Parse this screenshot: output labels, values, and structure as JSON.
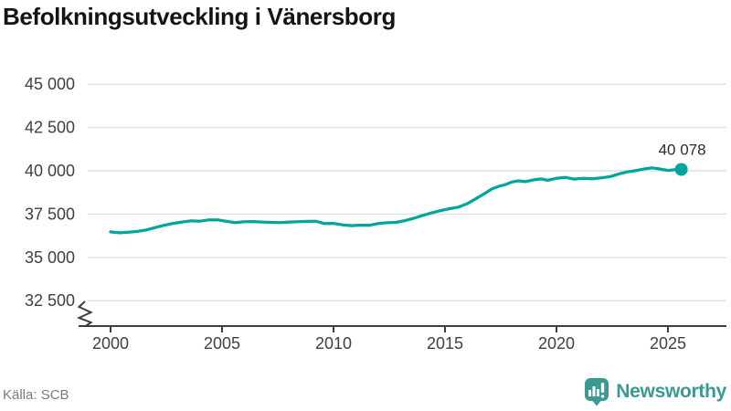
{
  "header": {
    "title": "Befolkningsutveckling i Vänersborg"
  },
  "footer": {
    "source": "Källa: SCB",
    "brand_name": "Newsworthy",
    "brand_icon": "newsworthy-speech-bubble-bar-chart-icon"
  },
  "colors": {
    "line": "#00A69B",
    "brand": "#3A9A93",
    "axis": "#3C3C3C",
    "grid": "#E0E0E0",
    "tick_text": "#404040"
  },
  "chart_data": {
    "type": "line",
    "title": "Befolkningsutveckling i Vänersborg",
    "xlabel": "",
    "ylabel": "",
    "legend": "none",
    "grid": "horizontal",
    "y_axis_break": true,
    "xlim": [
      1998.6,
      2027
    ],
    "ylim": [
      32500,
      45000
    ],
    "xticks": [
      2000,
      2005,
      2010,
      2015,
      2020,
      2025
    ],
    "xtick_labels": [
      "2000",
      "2005",
      "2010",
      "2015",
      "2020",
      "2025"
    ],
    "yticks": [
      45000,
      42500,
      40000,
      37500,
      35000,
      32500
    ],
    "ytick_labels": [
      "45 000",
      "42 500",
      "40 000",
      "37 500",
      "35 000",
      "32 500"
    ],
    "end_label": "40 078",
    "end_value": 40078,
    "x": [
      2000.0,
      2000.4,
      2000.8,
      2001.2,
      2001.6,
      2002.0,
      2002.4,
      2002.8,
      2003.2,
      2003.6,
      2004.0,
      2004.4,
      2004.8,
      2005.2,
      2005.6,
      2006.0,
      2006.4,
      2006.8,
      2007.2,
      2007.6,
      2008.0,
      2008.4,
      2008.8,
      2009.2,
      2009.6,
      2010.0,
      2010.4,
      2010.8,
      2011.2,
      2011.6,
      2012.0,
      2012.4,
      2012.8,
      2013.2,
      2013.6,
      2014.0,
      2014.4,
      2014.8,
      2015.2,
      2015.6,
      2016.0,
      2016.4,
      2016.8,
      2017.1,
      2017.4,
      2017.7,
      2018.0,
      2018.3,
      2018.6,
      2019.0,
      2019.3,
      2019.6,
      2020.0,
      2020.4,
      2020.8,
      2021.2,
      2021.6,
      2022.0,
      2022.4,
      2022.8,
      2023.2,
      2023.6,
      2024.0,
      2024.3,
      2024.6,
      2025.0,
      2025.3,
      2025.6
    ],
    "values": [
      36470,
      36420,
      36450,
      36500,
      36580,
      36720,
      36850,
      36960,
      37040,
      37110,
      37090,
      37160,
      37170,
      37080,
      37010,
      37060,
      37070,
      37040,
      37020,
      37010,
      37040,
      37060,
      37080,
      37090,
      36950,
      36960,
      36880,
      36830,
      36860,
      36850,
      36950,
      37000,
      37020,
      37120,
      37260,
      37420,
      37570,
      37700,
      37810,
      37900,
      38100,
      38400,
      38700,
      38950,
      39100,
      39200,
      39350,
      39420,
      39370,
      39480,
      39530,
      39450,
      39560,
      39620,
      39520,
      39570,
      39540,
      39590,
      39660,
      39820,
      39940,
      40020,
      40120,
      40170,
      40110,
      40020,
      40060,
      40078
    ]
  }
}
